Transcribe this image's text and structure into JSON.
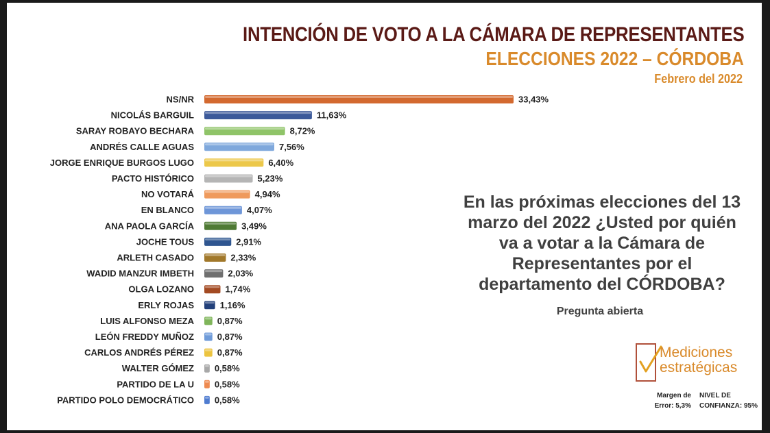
{
  "header": {
    "title": "INTENCIÓN DE VOTO A LA CÁMARA DE REPRESENTANTES",
    "subtitle": "ELECCIONES 2022 – CÓRDOBA",
    "date": "Febrero del 2022"
  },
  "question": {
    "text": "En las próximas elecciones del 13 marzo del 2022 ¿Usted por quién va a votar a la Cámara de Representantes por el departamento del CÓRDOBA?",
    "note": "Pregunta abierta"
  },
  "logo": {
    "line1": "Mediciones",
    "line2": "estratégicas"
  },
  "footer": {
    "margin_label": "Margen de Error: 5,3%",
    "confidence_label": "NIVEL DE CONFIANZA: 95%"
  },
  "chart_data": {
    "type": "bar",
    "orientation": "horizontal",
    "categories": [
      "NS/NR",
      "NICOLÁS BARGUIL",
      "SARAY ROBAYO BECHARA",
      "ANDRÉS CALLE AGUAS",
      "JORGE ENRIQUE BURGOS LUGO",
      "PACTO HISTÓRICO",
      "NO VOTARÁ",
      "EN BLANCO",
      "ANA PAOLA GARCÍA",
      "JOCHE TOUS",
      "ARLETH CASADO",
      "WADID MANZUR IMBETH",
      "OLGA LOZANO",
      "ERLY ROJAS",
      "LUIS ALFONSO MEZA",
      "LEÓN FREDDY MUÑOZ",
      "CARLOS ANDRÉS PÉREZ",
      "WALTER GÓMEZ",
      "PARTIDO DE LA U",
      "PARTIDO POLO DEMOCRÁTICO"
    ],
    "values": [
      33.43,
      11.63,
      8.72,
      7.56,
      6.4,
      5.23,
      4.94,
      4.07,
      3.49,
      2.91,
      2.33,
      2.03,
      1.74,
      1.16,
      0.87,
      0.87,
      0.87,
      0.58,
      0.58,
      0.58
    ],
    "value_labels": [
      "33,43%",
      "11,63%",
      "8,72%",
      "7,56%",
      "6,40%",
      "5,23%",
      "4,94%",
      "4,07%",
      "3,49%",
      "2,91%",
      "2,33%",
      "2,03%",
      "1,74%",
      "1,16%",
      "0,87%",
      "0,87%",
      "0,87%",
      "0,58%",
      "0,58%",
      "0,58%"
    ],
    "colors": [
      "#d3692f",
      "#3c5a9a",
      "#8fc468",
      "#7fa8dc",
      "#ecc84a",
      "#b5b5b5",
      "#ef9a5c",
      "#6e96d8",
      "#4f7a34",
      "#2f5690",
      "#a1782a",
      "#6f6f6f",
      "#a34a22",
      "#22407a",
      "#7fb55a",
      "#6f9bd9",
      "#ecc440",
      "#a8a8a8",
      "#ee8a50",
      "#4f7cd0"
    ],
    "xlim": [
      0,
      33.43
    ]
  }
}
